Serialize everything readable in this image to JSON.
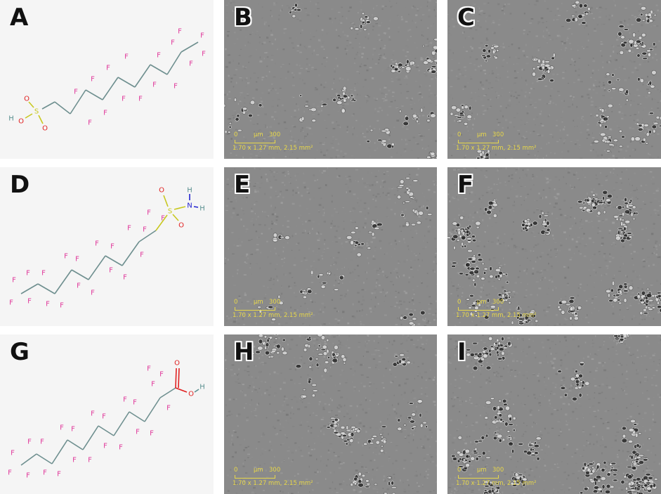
{
  "panels": {
    "A": {
      "letter": "A"
    },
    "B": {
      "letter": "B"
    },
    "C": {
      "letter": "C"
    },
    "D": {
      "letter": "D"
    },
    "E": {
      "letter": "E"
    },
    "F": {
      "letter": "F"
    },
    "G": {
      "letter": "G"
    },
    "H": {
      "letter": "H"
    },
    "I": {
      "letter": "I"
    }
  },
  "scale_bar": {
    "start": "0",
    "unit": "µm",
    "end": "300",
    "dimensions": "1.70 x 1.27 mm, 2.15 mm²"
  },
  "atoms": {
    "fluorine": "F",
    "sulfur": "S",
    "oxygen": "O",
    "hydrogen": "H",
    "nitrogen": "N"
  },
  "colors": {
    "fluorine": "#e0389a",
    "sulfur": "#c8c820",
    "oxygen": "#e02020",
    "hydrogen": "#5a8f8f",
    "nitrogen": "#2020d0",
    "bond": "#6e8f8f",
    "scale": "#e8d84a"
  }
}
